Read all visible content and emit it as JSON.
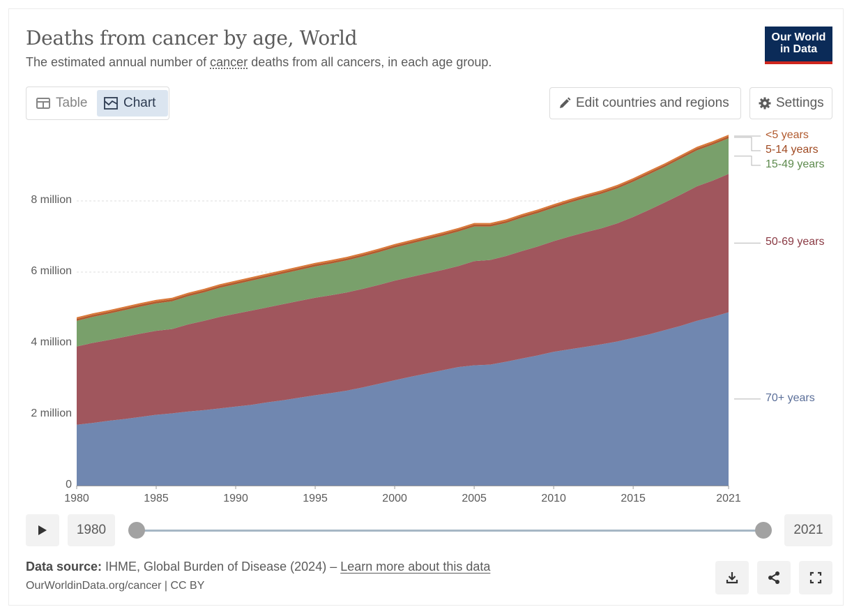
{
  "header": {
    "title": "Deaths from cancer by age, World",
    "subtitle_pre": "The estimated annual number of ",
    "subtitle_link": "cancer",
    "subtitle_post": " deaths from all cancers, in each age group.",
    "logo_line1": "Our World",
    "logo_line2": "in Data"
  },
  "toolbar": {
    "table_label": "Table",
    "chart_label": "Chart",
    "edit_label": "Edit countries and regions",
    "settings_label": "Settings"
  },
  "timeline": {
    "start_year": "1980",
    "end_year": "2021"
  },
  "footer": {
    "source_label": "Data source:",
    "source_text": " IHME, Global Burden of Disease (2024) – ",
    "learn_more": "Learn more about this data",
    "citation": "OurWorldinData.org/cancer | CC BY"
  },
  "colors": {
    "70+ years": "#7087b0",
    "50-69 years": "#a0565d",
    "15-49 years": "#79a06b",
    "5-14 years": "#b15a2e",
    "<5 years": "#d9793a",
    "grid": "#dddddd",
    "axis": "#9a9a9a"
  },
  "chart_data": {
    "type": "area",
    "stacked": true,
    "x": [
      1980,
      1981,
      1982,
      1983,
      1984,
      1985,
      1986,
      1987,
      1988,
      1989,
      1990,
      1991,
      1992,
      1993,
      1994,
      1995,
      1996,
      1997,
      1998,
      1999,
      2000,
      2001,
      2002,
      2003,
      2004,
      2005,
      2006,
      2007,
      2008,
      2009,
      2010,
      2011,
      2012,
      2013,
      2014,
      2015,
      2016,
      2017,
      2018,
      2019,
      2020,
      2021
    ],
    "xticks": [
      1980,
      1985,
      1990,
      1995,
      2000,
      2005,
      2010,
      2015,
      2021
    ],
    "yticks": [
      {
        "value": 0,
        "label": "0"
      },
      {
        "value": 2000000,
        "label": "2 million"
      },
      {
        "value": 4000000,
        "label": "4 million"
      },
      {
        "value": 6000000,
        "label": "6 million"
      },
      {
        "value": 8000000,
        "label": "8 million"
      }
    ],
    "ylim": [
      0,
      10000000
    ],
    "legend_position": "right, inline labels",
    "series": [
      {
        "name": "70+ years",
        "values": [
          1710000,
          1760000,
          1820000,
          1870000,
          1930000,
          1990000,
          2030000,
          2080000,
          2120000,
          2170000,
          2220000,
          2270000,
          2340000,
          2400000,
          2470000,
          2540000,
          2600000,
          2670000,
          2760000,
          2860000,
          2960000,
          3060000,
          3150000,
          3240000,
          3330000,
          3380000,
          3400000,
          3480000,
          3570000,
          3660000,
          3760000,
          3830000,
          3900000,
          3970000,
          4050000,
          4150000,
          4250000,
          4370000,
          4490000,
          4630000,
          4740000,
          4870000
        ]
      },
      {
        "name": "50-69 years",
        "values": [
          2200000,
          2250000,
          2270000,
          2310000,
          2340000,
          2360000,
          2370000,
          2450000,
          2510000,
          2570000,
          2610000,
          2650000,
          2670000,
          2700000,
          2720000,
          2740000,
          2750000,
          2760000,
          2770000,
          2780000,
          2800000,
          2800000,
          2810000,
          2820000,
          2840000,
          2930000,
          2940000,
          2970000,
          3020000,
          3060000,
          3110000,
          3170000,
          3220000,
          3260000,
          3320000,
          3400000,
          3500000,
          3590000,
          3690000,
          3780000,
          3830000,
          3890000
        ]
      },
      {
        "name": "15-49 years",
        "values": [
          720000,
          730000,
          740000,
          750000,
          760000,
          770000,
          780000,
          790000,
          800000,
          820000,
          830000,
          840000,
          850000,
          860000,
          870000,
          880000,
          890000,
          900000,
          910000,
          920000,
          930000,
          940000,
          950000,
          960000,
          970000,
          970000,
          940000,
          930000,
          940000,
          940000,
          940000,
          950000,
          960000,
          970000,
          980000,
          990000,
          1000000,
          1000000,
          1010000,
          1010000,
          1010000,
          1000000
        ]
      },
      {
        "name": "5-14 years",
        "values": [
          55000,
          55000,
          55000,
          55000,
          55000,
          55000,
          55000,
          55000,
          55000,
          55000,
          55000,
          55000,
          55000,
          55000,
          55000,
          55000,
          55000,
          55000,
          55000,
          55000,
          55000,
          55000,
          55000,
          55000,
          55000,
          55000,
          55000,
          55000,
          55000,
          55000,
          55000,
          55000,
          55000,
          55000,
          55000,
          55000,
          55000,
          55000,
          55000,
          55000,
          55000,
          55000
        ]
      },
      {
        "name": "<5 years",
        "values": [
          45000,
          45000,
          45000,
          45000,
          45000,
          45000,
          45000,
          45000,
          45000,
          45000,
          45000,
          45000,
          45000,
          45000,
          45000,
          45000,
          45000,
          45000,
          45000,
          45000,
          45000,
          45000,
          45000,
          45000,
          45000,
          45000,
          45000,
          45000,
          45000,
          45000,
          45000,
          45000,
          45000,
          45000,
          45000,
          45000,
          45000,
          45000,
          45000,
          45000,
          45000,
          45000
        ]
      }
    ]
  }
}
